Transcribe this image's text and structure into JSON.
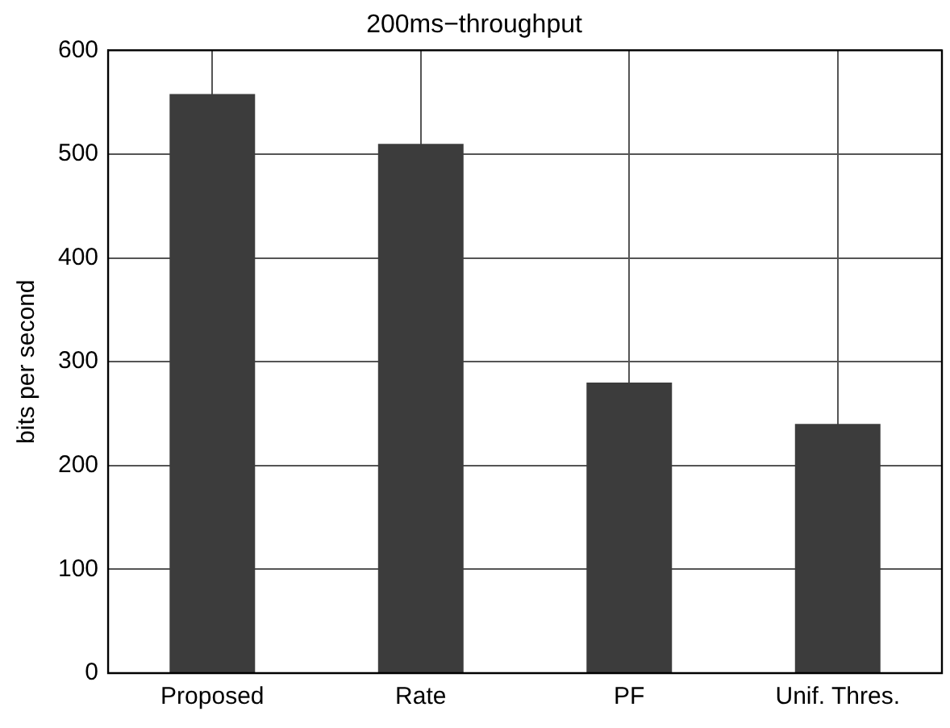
{
  "chart_data": {
    "type": "bar",
    "title": "200ms−throughput",
    "ylabel": "bits per second",
    "categories": [
      "Proposed",
      "Rate",
      "PF",
      "Unif. Thres."
    ],
    "values": [
      558,
      510,
      280,
      240
    ],
    "color": "#3c3c3c",
    "ylim": [
      0,
      600
    ],
    "yticks": [
      0,
      100,
      200,
      300,
      400,
      500,
      600
    ],
    "grid": true,
    "legend": false
  }
}
